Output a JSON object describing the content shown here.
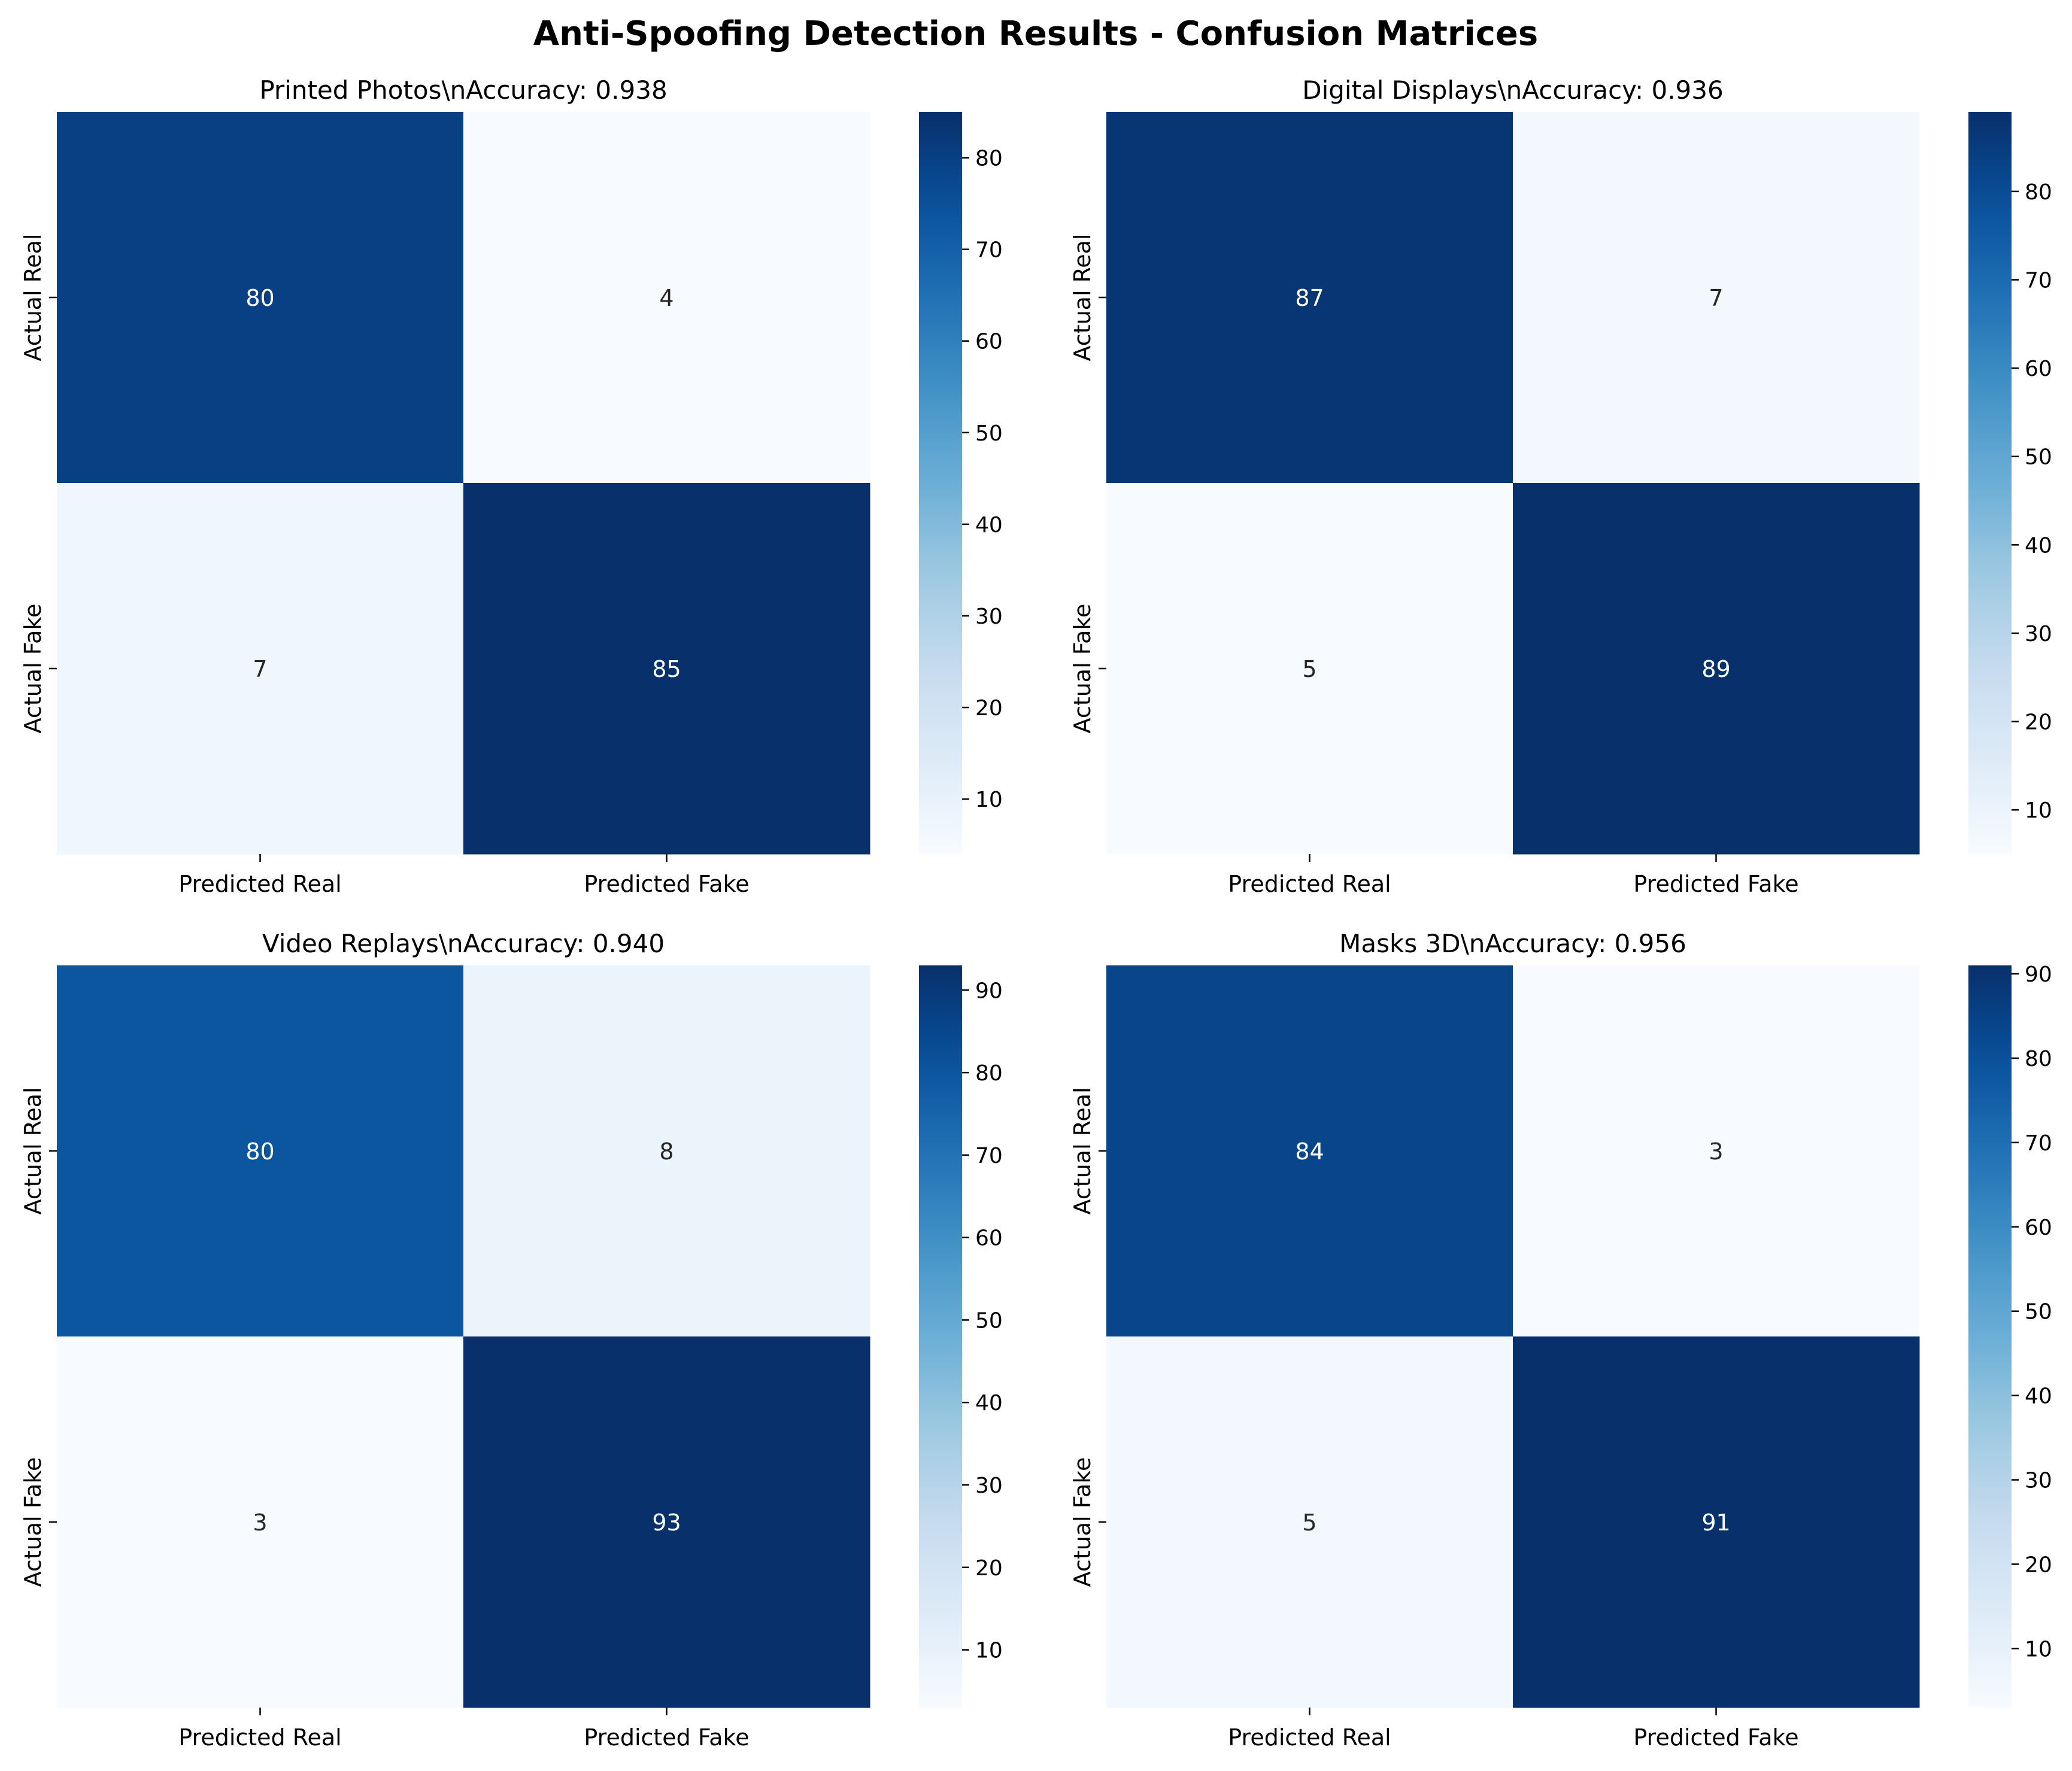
{
  "title": "Anti-Spoofing Detection Results - Confusion Matrices",
  "colormap": {
    "name": "Blues",
    "stops": [
      "#f7fbff",
      "#deebf7",
      "#c6dbef",
      "#9ecae1",
      "#6baed6",
      "#4292c6",
      "#2171b5",
      "#08519c",
      "#08306b"
    ]
  },
  "annotation_colors": {
    "light": "#ffffff",
    "dark": "#262626"
  },
  "chart_data": [
    {
      "type": "heatmap",
      "title": "Printed Photos\\nAccuracy: 0.938",
      "xlabel": "",
      "ylabel": "",
      "x_categories": [
        "Predicted Real",
        "Predicted Fake"
      ],
      "y_categories": [
        "Actual Real",
        "Actual Fake"
      ],
      "values": [
        [
          80,
          4
        ],
        [
          7,
          85
        ]
      ],
      "colorbar": {
        "vmin": 4,
        "vmax": 85,
        "ticks": [
          10,
          20,
          30,
          40,
          50,
          60,
          70,
          80
        ]
      }
    },
    {
      "type": "heatmap",
      "title": "Digital Displays\\nAccuracy: 0.936",
      "xlabel": "",
      "ylabel": "",
      "x_categories": [
        "Predicted Real",
        "Predicted Fake"
      ],
      "y_categories": [
        "Actual Real",
        "Actual Fake"
      ],
      "values": [
        [
          87,
          7
        ],
        [
          5,
          89
        ]
      ],
      "colorbar": {
        "vmin": 5,
        "vmax": 89,
        "ticks": [
          10,
          20,
          30,
          40,
          50,
          60,
          70,
          80
        ]
      }
    },
    {
      "type": "heatmap",
      "title": "Video Replays\\nAccuracy: 0.940",
      "xlabel": "",
      "ylabel": "",
      "x_categories": [
        "Predicted Real",
        "Predicted Fake"
      ],
      "y_categories": [
        "Actual Real",
        "Actual Fake"
      ],
      "values": [
        [
          80,
          8
        ],
        [
          3,
          93
        ]
      ],
      "colorbar": {
        "vmin": 3,
        "vmax": 93,
        "ticks": [
          10,
          20,
          30,
          40,
          50,
          60,
          70,
          80,
          90
        ]
      }
    },
    {
      "type": "heatmap",
      "title": "Masks 3D\\nAccuracy: 0.956",
      "xlabel": "",
      "ylabel": "",
      "x_categories": [
        "Predicted Real",
        "Predicted Fake"
      ],
      "y_categories": [
        "Actual Real",
        "Actual Fake"
      ],
      "values": [
        [
          84,
          3
        ],
        [
          5,
          91
        ]
      ],
      "colorbar": {
        "vmin": 3,
        "vmax": 91,
        "ticks": [
          10,
          20,
          30,
          40,
          50,
          60,
          70,
          80,
          90
        ]
      }
    }
  ]
}
